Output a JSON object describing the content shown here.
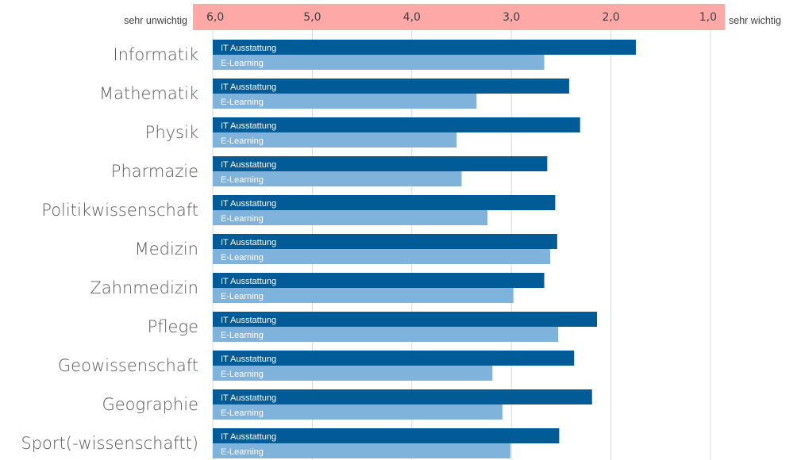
{
  "chart_data": {
    "type": "bar",
    "orientation": "horizontal",
    "x_axis_position": "top",
    "x_reversed": true,
    "xlim": [
      1.0,
      6.0
    ],
    "ticks": [
      "6,0",
      "5,0",
      "4,0",
      "3,0",
      "2,0",
      "1,0"
    ],
    "left_end_label": "sehr unwichtig",
    "right_end_label": "sehr wichtig",
    "categories": [
      "Informatik",
      "Mathematik",
      "Physik",
      "Pharmazie",
      "Politikwissenschaft",
      "Medizin",
      "Zahnmedizin",
      "Pflege",
      "Geowissenschaft",
      "Geographie",
      "Sport(-wissenschaftt)"
    ],
    "series": [
      {
        "name": "IT Ausstattung",
        "color": "#005b96",
        "values": [
          1.75,
          2.42,
          2.31,
          2.64,
          2.56,
          2.54,
          2.67,
          2.14,
          2.37,
          2.19,
          2.52
        ]
      },
      {
        "name": "E-Learning",
        "color": "#80b3dc",
        "values": [
          2.67,
          3.35,
          3.55,
          3.5,
          3.24,
          2.61,
          2.98,
          2.53,
          3.19,
          3.09,
          3.01
        ]
      }
    ],
    "axis_band_color": "#ffa8a8",
    "grid": true
  }
}
